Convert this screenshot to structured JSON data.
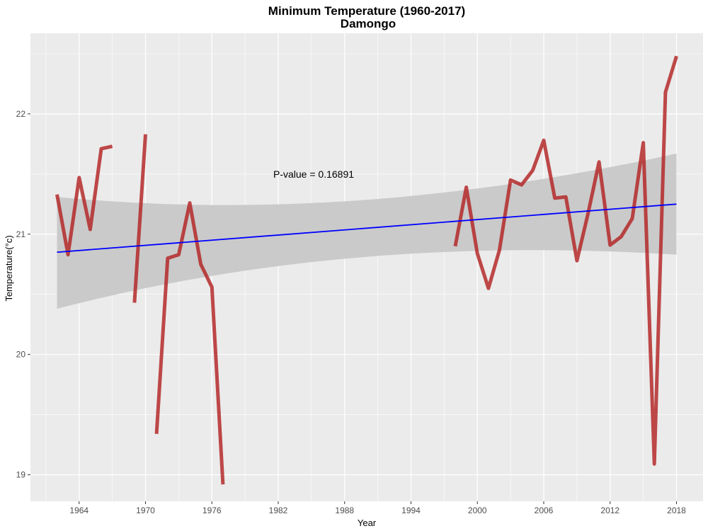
{
  "chart_data": {
    "type": "line",
    "title": "Minimum Temperature (1960-2017)",
    "subtitle": "Damongo",
    "xlabel": "Year",
    "ylabel": "Temperature(°c)",
    "xlim": [
      1959.6,
      2020.4
    ],
    "ylim": [
      18.78,
      22.67
    ],
    "x_ticks": [
      1964,
      1970,
      1976,
      1982,
      1988,
      1994,
      2000,
      2006,
      2012,
      2018
    ],
    "y_ticks": [
      19,
      20,
      21,
      22
    ],
    "grid": true,
    "legend": "none",
    "annotation": "P-value = 0.16891",
    "colors": {
      "panel": "#ebebeb",
      "grid": "#ffffff",
      "series": "#b22222",
      "trend": "#0000ff",
      "confidence_band": "#c8c8c8"
    },
    "series": [
      {
        "values": [
          [
            1962,
            21.33
          ],
          [
            1963,
            20.83
          ],
          [
            1964,
            21.47
          ],
          [
            1965,
            21.04
          ],
          [
            1966,
            21.71
          ],
          [
            1967,
            21.73
          ],
          [
            1969,
            20.43
          ],
          [
            1970,
            21.83
          ],
          [
            1971,
            19.34
          ],
          [
            1972,
            20.8
          ],
          [
            1973,
            20.83
          ],
          [
            1974,
            21.26
          ],
          [
            1975,
            20.75
          ],
          [
            1976,
            20.56
          ],
          [
            1977,
            18.92
          ],
          [
            1998,
            20.9
          ],
          [
            1999,
            21.39
          ],
          [
            2000,
            20.84
          ],
          [
            2001,
            20.55
          ],
          [
            2002,
            20.87
          ],
          [
            2003,
            21.45
          ],
          [
            2004,
            21.41
          ],
          [
            2005,
            21.53
          ],
          [
            2006,
            21.78
          ],
          [
            2007,
            21.3
          ],
          [
            2008,
            21.31
          ],
          [
            2009,
            20.78
          ],
          [
            2010,
            21.17
          ],
          [
            2011,
            21.6
          ],
          [
            2012,
            20.91
          ],
          [
            2013,
            20.98
          ],
          [
            2014,
            21.13
          ],
          [
            2015,
            21.76
          ],
          [
            2016,
            19.09
          ],
          [
            2017,
            22.18
          ],
          [
            2018,
            22.48
          ]
        ],
        "segments": [
          [
            0,
            5
          ],
          [
            6,
            7
          ],
          [
            8,
            14
          ],
          [
            15,
            35
          ]
        ]
      }
    ],
    "trend": {
      "type": "linear",
      "x": [
        1962,
        2018
      ],
      "y": [
        20.85,
        21.25
      ],
      "ci_lower": [
        20.38,
        20.83
      ],
      "ci_upper": [
        21.31,
        21.67
      ]
    }
  }
}
